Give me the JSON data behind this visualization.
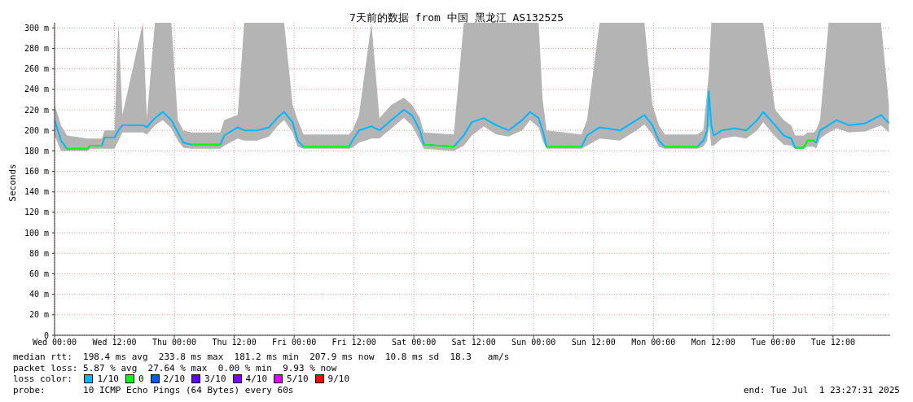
{
  "chart_data": {
    "type": "line",
    "title": "7天前的数据 from 中国 黑龙江 AS132525",
    "ylabel": "Seconds",
    "legend_title": "loss color:",
    "x": [
      "2025-06-25T00:00",
      "2025-06-25T01:18",
      "2025-06-25T02:30",
      "2025-06-25T06:42",
      "2025-06-25T07:00",
      "2025-06-25T09:30",
      "2025-06-25T10:00",
      "2025-06-25T12:00",
      "2025-06-25T12:48",
      "2025-06-25T13:36",
      "2025-06-25T17:42",
      "2025-06-25T18:30",
      "2025-06-25T20:06",
      "2025-06-25T21:42",
      "2025-06-25T23:24",
      "2025-06-26T00:42",
      "2025-06-26T01:48",
      "2025-06-26T03:30",
      "2025-06-26T09:12",
      "2025-06-26T10:00",
      "2025-06-26T12:42",
      "2025-06-26T14:00",
      "2025-06-26T16:36",
      "2025-06-26T19:00",
      "2025-06-26T20:36",
      "2025-06-26T22:00",
      "2025-06-26T23:42",
      "2025-06-27T00:42",
      "2025-06-27T01:54",
      "2025-06-27T11:00",
      "2025-06-27T11:42",
      "2025-06-27T13:00",
      "2025-06-27T15:30",
      "2025-06-27T17:06",
      "2025-06-27T19:30",
      "2025-06-27T22:00",
      "2025-06-27T23:36",
      "2025-06-28T01:12",
      "2025-06-28T02:00",
      "2025-06-28T08:00",
      "2025-06-28T10:00",
      "2025-06-28T11:36",
      "2025-06-28T14:00",
      "2025-06-28T16:30",
      "2025-06-28T19:00",
      "2025-06-28T21:42",
      "2025-06-28T23:18",
      "2025-06-29T01:00",
      "2025-06-29T01:48",
      "2025-06-29T02:36",
      "2025-06-29T09:36",
      "2025-06-29T10:42",
      "2025-06-29T13:12",
      "2025-06-29T17:18",
      "2025-06-29T20:36",
      "2025-06-29T22:12",
      "2025-06-29T23:48",
      "2025-06-30T01:06",
      "2025-06-30T02:18",
      "2025-06-30T08:48",
      "2025-06-30T10:00",
      "2025-06-30T10:48",
      "2025-06-30T11:06",
      "2025-06-30T11:36",
      "2025-06-30T12:06",
      "2025-06-30T13:42",
      "2025-06-30T16:12",
      "2025-06-30T18:36",
      "2025-06-30T20:48",
      "2025-06-30T22:00",
      "2025-07-01T00:24",
      "2025-07-01T02:06",
      "2025-07-01T03:36",
      "2025-07-01T04:24",
      "2025-07-01T06:06",
      "2025-07-01T06:54",
      "2025-07-01T08:06",
      "2025-07-01T08:36",
      "2025-07-01T09:24",
      "2025-07-01T11:06",
      "2025-07-01T12:42",
      "2025-07-01T15:12",
      "2025-07-01T18:30",
      "2025-07-01T21:36",
      "2025-07-01T23:12"
    ],
    "series": [
      {
        "name": "1/10",
        "color": "#00b8ff",
        "values": [
          210,
          190,
          182,
          182,
          185,
          185,
          193,
          193,
          200,
          205,
          205,
          203,
          212,
          218,
          210,
          198,
          188,
          186,
          186,
          195,
          203,
          200,
          200,
          203,
          212,
          218,
          208,
          190,
          184,
          184,
          190,
          200,
          204,
          200,
          210,
          220,
          215,
          200,
          186,
          184,
          195,
          208,
          212,
          205,
          200,
          210,
          218,
          212,
          200,
          184,
          184,
          195,
          203,
          200,
          210,
          215,
          205,
          190,
          184,
          184,
          190,
          200,
          238,
          205,
          195,
          200,
          202,
          200,
          210,
          218,
          205,
          195,
          192,
          183,
          183,
          190,
          190,
          188,
          200,
          205,
          210,
          205,
          207,
          215,
          207
        ],
        "lower": [
          195,
          180,
          180,
          180,
          182,
          182,
          182,
          182,
          190,
          198,
          198,
          196,
          205,
          210,
          202,
          190,
          183,
          182,
          182,
          185,
          192,
          190,
          190,
          194,
          204,
          210,
          198,
          184,
          182,
          182,
          183,
          188,
          192,
          192,
          202,
          212,
          205,
          190,
          182,
          180,
          185,
          195,
          204,
          196,
          194,
          200,
          210,
          203,
          190,
          182,
          182,
          185,
          192,
          190,
          200,
          206,
          196,
          184,
          182,
          182,
          184,
          190,
          205,
          185,
          185,
          192,
          194,
          192,
          200,
          208,
          194,
          186,
          185,
          182,
          182,
          184,
          184,
          182,
          192,
          198,
          202,
          198,
          199,
          205,
          198
        ],
        "upper": [
          225,
          205,
          195,
          192,
          192,
          192,
          200,
          200,
          305,
          215,
          305,
          212,
          305,
          305,
          305,
          210,
          200,
          198,
          198,
          210,
          215,
          305,
          305,
          305,
          305,
          305,
          225,
          210,
          196,
          196,
          200,
          215,
          305,
          212,
          225,
          232,
          225,
          212,
          198,
          196,
          305,
          305,
          305,
          305,
          305,
          305,
          305,
          305,
          230,
          200,
          196,
          210,
          305,
          305,
          305,
          305,
          225,
          205,
          196,
          196,
          200,
          240,
          255,
          305,
          305,
          305,
          305,
          305,
          305,
          305,
          220,
          210,
          205,
          195,
          195,
          198,
          198,
          200,
          210,
          305,
          305,
          305,
          305,
          305,
          225
        ]
      },
      {
        "name": "0",
        "color": "#00ff00",
        "values": [
          null,
          null,
          182,
          182,
          185,
          185,
          null,
          null,
          null,
          null,
          null,
          null,
          null,
          null,
          null,
          null,
          null,
          186,
          186,
          null,
          null,
          null,
          null,
          null,
          null,
          null,
          null,
          null,
          184,
          184,
          null,
          null,
          null,
          null,
          null,
          null,
          null,
          null,
          186,
          184,
          null,
          null,
          null,
          null,
          null,
          null,
          null,
          null,
          null,
          184,
          184,
          null,
          null,
          null,
          null,
          null,
          null,
          null,
          184,
          184,
          null,
          null,
          null,
          null,
          null,
          null,
          null,
          null,
          null,
          null,
          null,
          null,
          null,
          183,
          183,
          190,
          190,
          null,
          null,
          null,
          null,
          null,
          null,
          null,
          null
        ]
      },
      {
        "name": "2/10",
        "color": "#0059ff",
        "values": [
          null,
          null,
          null,
          null,
          null,
          null,
          null,
          null,
          null,
          null,
          null,
          null,
          null,
          null,
          null,
          null,
          null,
          null,
          null,
          null,
          null,
          null,
          null,
          null,
          null,
          null,
          null,
          null,
          null,
          null,
          null,
          null,
          null,
          null,
          null,
          null,
          null,
          null,
          null,
          null,
          null,
          null,
          null,
          null,
          null,
          null,
          null,
          null,
          null,
          null,
          null,
          null,
          null,
          null,
          null,
          null,
          null,
          null,
          null,
          null,
          null,
          null,
          null,
          null,
          null,
          null,
          null,
          null,
          null,
          null,
          null,
          null,
          null,
          null,
          null,
          null,
          null,
          null,
          null,
          null,
          null,
          null,
          null,
          null,
          null
        ]
      },
      {
        "name": "3/10",
        "color": "#5e00ff",
        "values": [
          null,
          null,
          null,
          null,
          null,
          null,
          null,
          null,
          null,
          null,
          null,
          null,
          null,
          null,
          null,
          null,
          null,
          null,
          null,
          null,
          null,
          null,
          null,
          null,
          null,
          null,
          null,
          null,
          null,
          null,
          null,
          null,
          null,
          null,
          null,
          null,
          null,
          null,
          null,
          null,
          null,
          null,
          null,
          null,
          null,
          null,
          null,
          null,
          null,
          null,
          null,
          null,
          null,
          null,
          null,
          null,
          null,
          null,
          null,
          null,
          null,
          null,
          null,
          null,
          null,
          null,
          null,
          null,
          null,
          null,
          null,
          null,
          null,
          null,
          null,
          null,
          null,
          null,
          null,
          null,
          null,
          null,
          null,
          null,
          null
        ]
      },
      {
        "name": "4/10",
        "color": "#7e00ff",
        "values": [
          null,
          null,
          null,
          null,
          null,
          null,
          null,
          null,
          null,
          null,
          null,
          null,
          null,
          null,
          null,
          null,
          null,
          null,
          null,
          null,
          null,
          null,
          null,
          null,
          null,
          null,
          null,
          null,
          null,
          null,
          null,
          null,
          null,
          null,
          null,
          null,
          null,
          null,
          null,
          null,
          null,
          null,
          null,
          null,
          null,
          null,
          null,
          null,
          null,
          null,
          null,
          null,
          null,
          null,
          null,
          null,
          null,
          null,
          null,
          null,
          null,
          null,
          null,
          null,
          null,
          null,
          null,
          null,
          null,
          null,
          null,
          null,
          null,
          null,
          null,
          null,
          null,
          null,
          null,
          null,
          null,
          null,
          null,
          null,
          null
        ]
      },
      {
        "name": "5/10",
        "color": "#dd00ff",
        "values": [
          null,
          null,
          null,
          null,
          null,
          null,
          null,
          null,
          null,
          null,
          null,
          null,
          null,
          null,
          null,
          null,
          null,
          null,
          null,
          null,
          null,
          null,
          null,
          null,
          null,
          null,
          null,
          null,
          null,
          null,
          null,
          null,
          null,
          null,
          null,
          null,
          null,
          null,
          null,
          null,
          null,
          null,
          null,
          null,
          null,
          null,
          null,
          null,
          null,
          null,
          null,
          null,
          null,
          null,
          null,
          null,
          null,
          null,
          null,
          null,
          null,
          null,
          null,
          null,
          null,
          null,
          null,
          null,
          null,
          null,
          null,
          null,
          null,
          null,
          null,
          null,
          null,
          null,
          null,
          null,
          null,
          null,
          null,
          null,
          null
        ]
      },
      {
        "name": "9/10",
        "color": "#ff0000",
        "values": [
          null,
          null,
          null,
          null,
          null,
          null,
          null,
          null,
          null,
          null,
          null,
          null,
          null,
          null,
          null,
          null,
          null,
          null,
          null,
          null,
          null,
          null,
          null,
          null,
          null,
          null,
          null,
          null,
          null,
          null,
          null,
          null,
          null,
          null,
          null,
          null,
          null,
          null,
          null,
          null,
          null,
          null,
          null,
          null,
          null,
          null,
          null,
          null,
          null,
          null,
          null,
          null,
          null,
          null,
          null,
          null,
          null,
          null,
          null,
          null,
          null,
          null,
          null,
          null,
          null,
          null,
          null,
          null,
          null,
          null,
          null,
          null,
          null,
          null,
          null,
          null,
          null,
          null,
          null,
          null,
          null,
          null,
          null,
          null,
          null
        ]
      }
    ],
    "xlim": [
      "2025-06-25T00:00",
      "2025-07-01T23:27"
    ],
    "xticks": [
      {
        "value": "2025-06-25T00:00",
        "label": "Wed 00:00"
      },
      {
        "value": "2025-06-25T12:00",
        "label": "Wed 12:00"
      },
      {
        "value": "2025-06-26T00:00",
        "label": "Thu 00:00"
      },
      {
        "value": "2025-06-26T12:00",
        "label": "Thu 12:00"
      },
      {
        "value": "2025-06-27T00:00",
        "label": "Fri 00:00"
      },
      {
        "value": "2025-06-27T12:00",
        "label": "Fri 12:00"
      },
      {
        "value": "2025-06-28T00:00",
        "label": "Sat 00:00"
      },
      {
        "value": "2025-06-28T12:00",
        "label": "Sat 12:00"
      },
      {
        "value": "2025-06-29T00:00",
        "label": "Sun 00:00"
      },
      {
        "value": "2025-06-29T12:00",
        "label": "Sun 12:00"
      },
      {
        "value": "2025-06-30T00:00",
        "label": "Mon 00:00"
      },
      {
        "value": "2025-06-30T12:00",
        "label": "Mon 12:00"
      },
      {
        "value": "2025-07-01T00:00",
        "label": "Tue 00:00"
      },
      {
        "value": "2025-07-01T12:00",
        "label": "Tue 12:00"
      }
    ],
    "ylim": [
      0,
      305
    ],
    "yticks": [
      0,
      {
        "value": 20,
        "label": "20 m"
      },
      {
        "value": 40,
        "label": "40 m"
      },
      {
        "value": 60,
        "label": "60 m"
      },
      {
        "value": 80,
        "label": "80 m"
      },
      {
        "value": 100,
        "label": "100 m"
      },
      {
        "value": 120,
        "label": "120 m"
      },
      {
        "value": 140,
        "label": "140 m"
      },
      {
        "value": 160,
        "label": "160 m"
      },
      {
        "value": 180,
        "label": "180 m"
      },
      {
        "value": 200,
        "label": "200 m"
      },
      {
        "value": 220,
        "label": "220 m"
      },
      {
        "value": 240,
        "label": "240 m"
      },
      {
        "value": 260,
        "label": "260 m"
      },
      {
        "value": 280,
        "label": "280 m"
      },
      {
        "value": 300,
        "label": "300 m"
      }
    ],
    "grid": true,
    "legend": "bottom left",
    "marker": "none",
    "line_style": "solid",
    "annotations": [
      "median rtt:  198.4 ms avg  233.8 ms max  181.2 ms min  207.9 ms now  10.8 ms sd  18.3   am/s",
      "packet loss: 5.87 % avg  27.64 % max  0.00 % min  9.93 % now",
      "probe:       10 ICMP Echo Pings (64 Bytes) every 60s",
      "end: Tue Jul  1 23:27:31 2025"
    ]
  }
}
